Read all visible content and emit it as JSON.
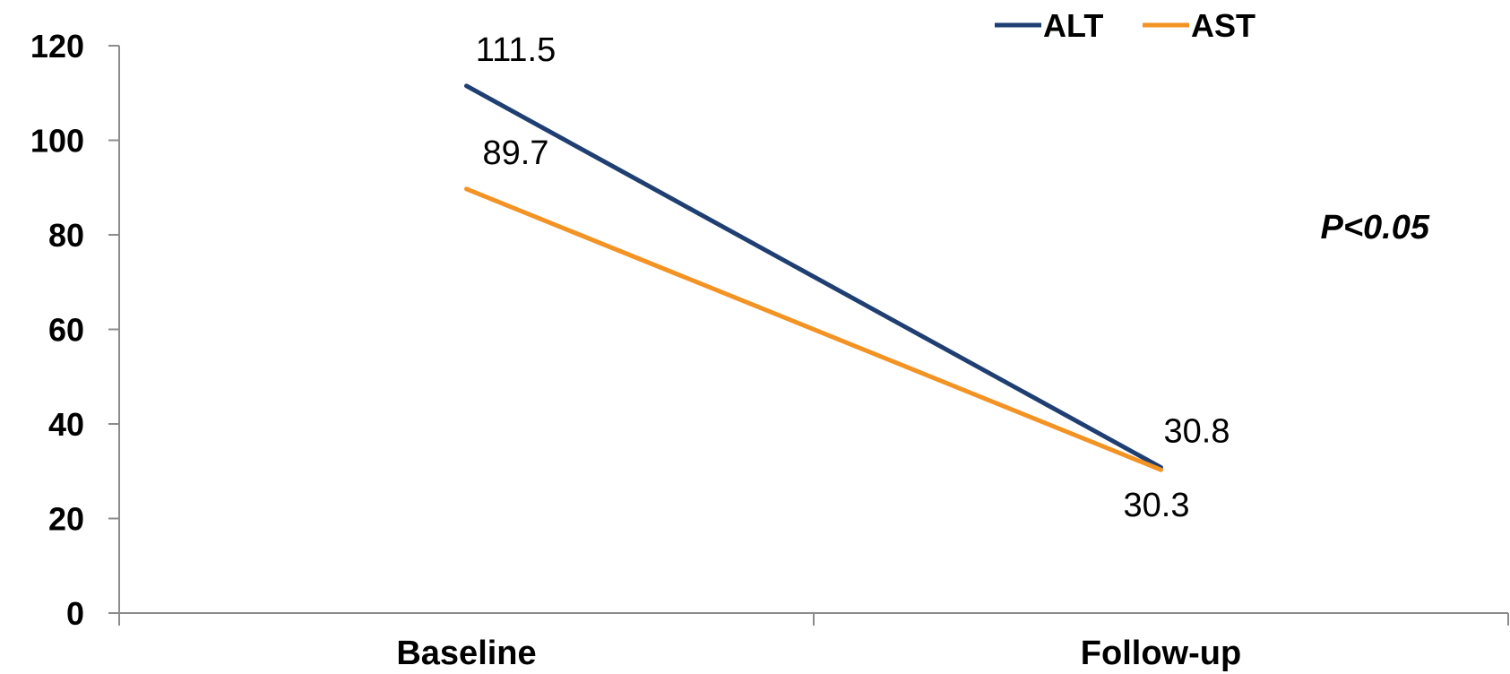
{
  "chart_data": {
    "type": "line",
    "categories": [
      "Baseline",
      "Follow-up"
    ],
    "series": [
      {
        "name": "ALT",
        "values": [
          111.5,
          30.8
        ],
        "color": "#1f3f73",
        "labels": [
          "111.5",
          "30.8"
        ]
      },
      {
        "name": "AST",
        "values": [
          89.7,
          30.3
        ],
        "color": "#f39324",
        "labels": [
          "89.7",
          "30.3"
        ]
      }
    ],
    "ylim": [
      0,
      120
    ],
    "yticks": [
      0,
      20,
      40,
      60,
      80,
      100,
      120
    ],
    "ytick_labels": [
      "0",
      "20",
      "40",
      "60",
      "80",
      "100",
      "120"
    ],
    "legend": {
      "placement": "top-right",
      "entries": [
        "ALT",
        "AST"
      ]
    },
    "annotation": "P<0.05",
    "grid": false,
    "title": "",
    "xlabel": "",
    "ylabel": ""
  }
}
